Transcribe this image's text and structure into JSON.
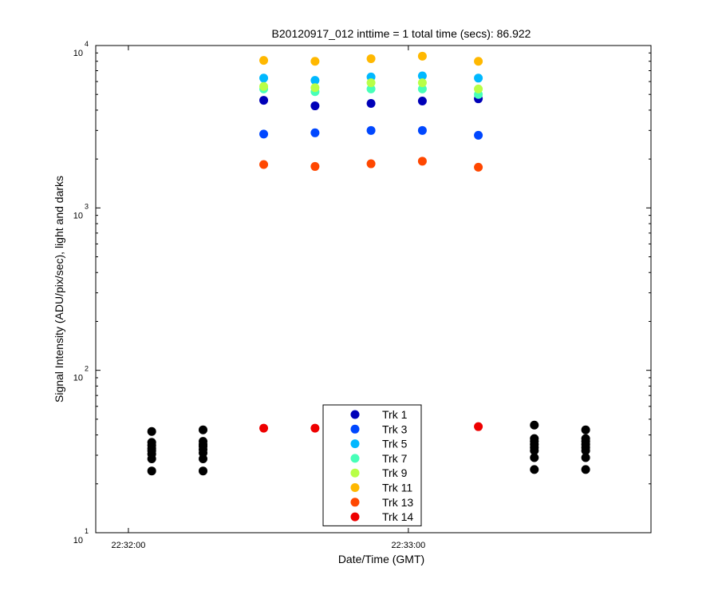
{
  "chart_data": {
    "type": "scatter",
    "title": "B20120917_012 inttime = 1 total time (secs): 86.922",
    "xlabel": "Date/Time (GMT)",
    "ylabel": "Signal Intensity (ADU/pix/sec), light and darks",
    "yscale": "log",
    "ylim": [
      10,
      10000
    ],
    "xlim": [
      "22:31:53",
      "22:33:52"
    ],
    "xticks": [
      "22:32:00",
      "22:33:00"
    ],
    "yticks": [
      {
        "value": 10,
        "base": "10",
        "exp": "1"
      },
      {
        "value": 100,
        "base": "10",
        "exp": "2"
      },
      {
        "value": 1000,
        "base": "10",
        "exp": "3"
      },
      {
        "value": 10000,
        "base": "10",
        "exp": "4"
      }
    ],
    "grid": false,
    "legend_position": "bottom-center",
    "x": [
      "22:32:05",
      "22:32:16",
      "22:32:29",
      "22:32:40",
      "22:32:52",
      "22:33:03",
      "22:33:15",
      "22:33:27",
      "22:33:38"
    ],
    "series": [
      {
        "name": "Trk 1",
        "color": "#0000b8",
        "values": [
          null,
          null,
          4600,
          4250,
          4400,
          4550,
          4700,
          null,
          null
        ]
      },
      {
        "name": "Trk 3",
        "color": "#0047ff",
        "values": [
          null,
          null,
          2850,
          2900,
          3000,
          3000,
          2800,
          null,
          null
        ]
      },
      {
        "name": "Trk 5",
        "color": "#00b8ff",
        "values": [
          null,
          null,
          6300,
          6100,
          6400,
          6500,
          6300,
          null,
          null
        ]
      },
      {
        "name": "Trk 7",
        "color": "#47ffb8",
        "values": [
          null,
          null,
          5400,
          5200,
          5400,
          5400,
          5000,
          null,
          null
        ]
      },
      {
        "name": "Trk 9",
        "color": "#b8ff47",
        "values": [
          null,
          null,
          5600,
          5500,
          5900,
          5900,
          5400,
          null,
          null
        ]
      },
      {
        "name": "Trk 11",
        "color": "#ffb800",
        "values": [
          null,
          null,
          8100,
          8000,
          8300,
          8600,
          8000,
          null,
          null
        ]
      },
      {
        "name": "Trk 13",
        "color": "#ff4700",
        "values": [
          null,
          null,
          1850,
          1800,
          1870,
          1940,
          1780,
          null,
          null
        ]
      },
      {
        "name": "Trk 14",
        "color": "#ee0000",
        "values": [
          null,
          null,
          44,
          44,
          null,
          null,
          45,
          null,
          null
        ]
      }
    ],
    "darks": {
      "color": "#000000",
      "x": [
        "22:32:05",
        "22:32:16",
        "22:33:27",
        "22:33:38"
      ],
      "values": [
        [
          24,
          28.5,
          30.5,
          32,
          33,
          34.5,
          36,
          42
        ],
        [
          24,
          28.5,
          31,
          32.5,
          34,
          35,
          36.5,
          43
        ],
        [
          24.5,
          29,
          32,
          33.5,
          35,
          36.5,
          38,
          46
        ],
        [
          24.5,
          29,
          32,
          33.5,
          35,
          36.5,
          38,
          43
        ]
      ]
    }
  }
}
